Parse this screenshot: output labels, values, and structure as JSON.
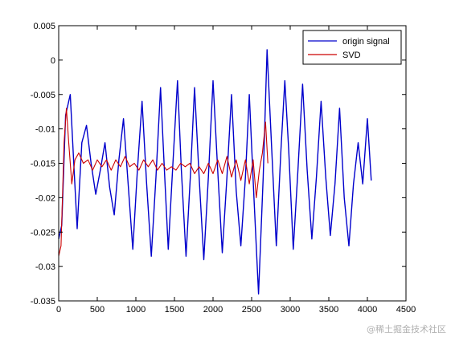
{
  "chart_data": {
    "type": "line",
    "title": "",
    "xlabel": "",
    "ylabel": "",
    "xlim": [
      0,
      4500
    ],
    "ylim": [
      -0.035,
      0.005
    ],
    "x_ticks": [
      0,
      500,
      1000,
      1500,
      2000,
      2500,
      3000,
      3500,
      4000,
      4500
    ],
    "x_tick_labels": [
      "0",
      "500",
      "1000",
      "1500",
      "2000",
      "2500",
      "3000",
      "3500",
      "4000",
      "4500"
    ],
    "y_ticks": [
      0.005,
      0,
      -0.005,
      -0.01,
      -0.015,
      -0.02,
      -0.025,
      -0.03,
      -0.035
    ],
    "y_tick_labels": [
      "0.005",
      "0",
      "-0.005",
      "-0.01",
      "-0.015",
      "-0.02",
      "-0.025",
      "-0.03",
      "-0.035"
    ],
    "grid": false,
    "legend_position": "top-right",
    "series": [
      {
        "name": "origin signal",
        "color": "#0000cc",
        "x": [
          0,
          40,
          90,
          150,
          200,
          240,
          300,
          360,
          420,
          480,
          540,
          600,
          660,
          720,
          780,
          840,
          900,
          960,
          1020,
          1080,
          1140,
          1200,
          1260,
          1320,
          1370,
          1420,
          1480,
          1540,
          1590,
          1650,
          1710,
          1760,
          1820,
          1880,
          1940,
          2000,
          2060,
          2120,
          2180,
          2240,
          2300,
          2360,
          2420,
          2470,
          2530,
          2590,
          2650,
          2700,
          2760,
          2820,
          2880,
          2930,
          2980,
          3040,
          3100,
          3160,
          3220,
          3280,
          3340,
          3400,
          3460,
          3520,
          3580,
          3640,
          3700,
          3760,
          3820,
          3880,
          3940,
          4000,
          4050
        ],
        "y": [
          -0.026,
          -0.024,
          -0.008,
          -0.005,
          -0.016,
          -0.0245,
          -0.012,
          -0.0095,
          -0.015,
          -0.0195,
          -0.016,
          -0.012,
          -0.0185,
          -0.0225,
          -0.0145,
          -0.0085,
          -0.018,
          -0.0275,
          -0.016,
          -0.006,
          -0.018,
          -0.0285,
          -0.017,
          -0.004,
          -0.016,
          -0.0275,
          -0.015,
          -0.003,
          -0.016,
          -0.0285,
          -0.016,
          -0.004,
          -0.017,
          -0.029,
          -0.017,
          -0.003,
          -0.016,
          -0.028,
          -0.017,
          -0.005,
          -0.019,
          -0.027,
          -0.017,
          -0.005,
          -0.02,
          -0.034,
          -0.017,
          0.0015,
          -0.013,
          -0.027,
          -0.013,
          -0.003,
          -0.013,
          -0.0275,
          -0.016,
          -0.0035,
          -0.016,
          -0.026,
          -0.017,
          -0.006,
          -0.017,
          -0.0255,
          -0.018,
          -0.007,
          -0.02,
          -0.027,
          -0.018,
          -0.012,
          -0.018,
          -0.0085,
          -0.0175
        ]
      },
      {
        "name": "SVD",
        "color": "#cc0000",
        "x": [
          0,
          30,
          70,
          100,
          130,
          170,
          210,
          260,
          320,
          380,
          440,
          500,
          560,
          620,
          680,
          740,
          800,
          860,
          920,
          980,
          1040,
          1100,
          1160,
          1220,
          1280,
          1340,
          1400,
          1460,
          1520,
          1580,
          1640,
          1700,
          1760,
          1820,
          1880,
          1940,
          2000,
          2060,
          2120,
          2180,
          2240,
          2300,
          2360,
          2420,
          2470,
          2520,
          2560,
          2600,
          2640,
          2680,
          2710
        ],
        "y": [
          -0.0285,
          -0.027,
          -0.012,
          -0.007,
          -0.012,
          -0.018,
          -0.0145,
          -0.0135,
          -0.015,
          -0.0145,
          -0.016,
          -0.0145,
          -0.0155,
          -0.0145,
          -0.016,
          -0.0145,
          -0.0155,
          -0.014,
          -0.0155,
          -0.015,
          -0.016,
          -0.0145,
          -0.0155,
          -0.0145,
          -0.016,
          -0.015,
          -0.016,
          -0.0155,
          -0.016,
          -0.015,
          -0.0155,
          -0.015,
          -0.0165,
          -0.0155,
          -0.0165,
          -0.015,
          -0.0165,
          -0.0145,
          -0.0165,
          -0.014,
          -0.017,
          -0.0145,
          -0.0175,
          -0.0145,
          -0.018,
          -0.0145,
          -0.02,
          -0.016,
          -0.0135,
          -0.009,
          -0.015
        ]
      }
    ]
  },
  "watermark": "@稀土掘金技术社区"
}
